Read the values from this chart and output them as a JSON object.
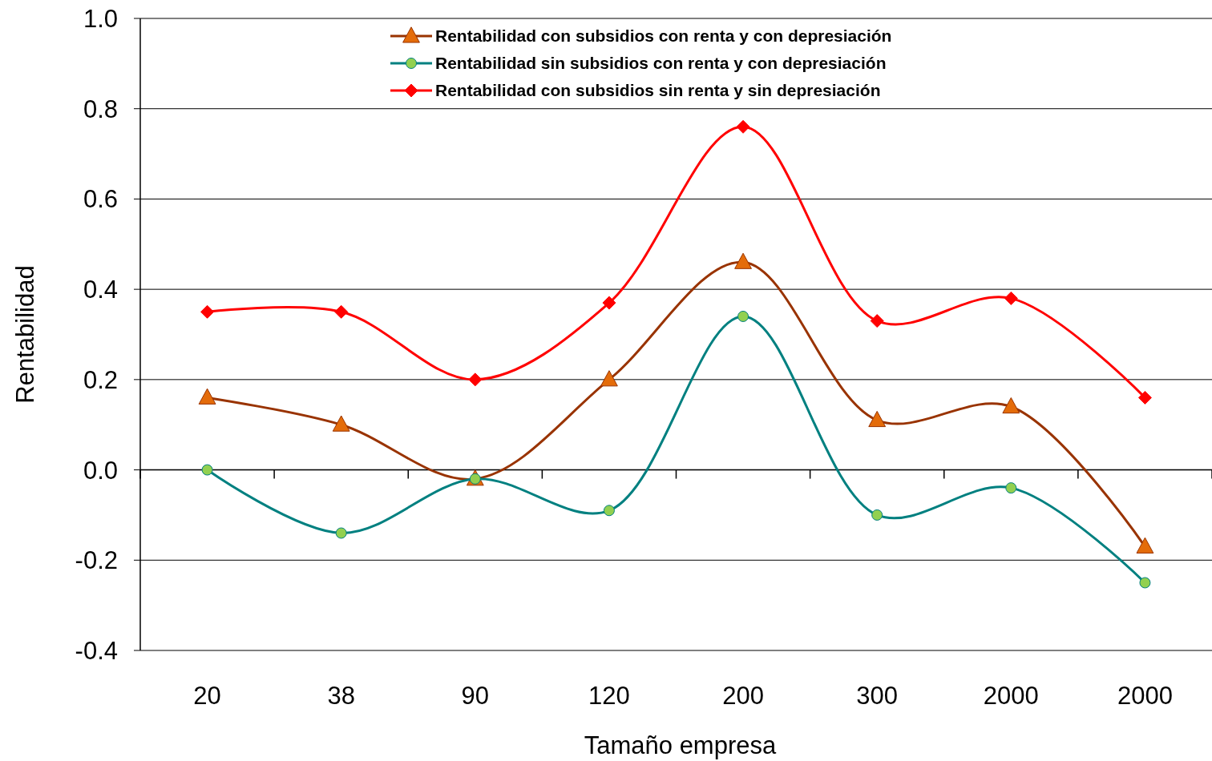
{
  "chart_data": {
    "type": "line",
    "xlabel": "Tamaño empresa",
    "ylabel": "Rentabilidad",
    "categories": [
      "20",
      "38",
      "90",
      "120",
      "200",
      "300",
      "2000",
      "2000"
    ],
    "series": [
      {
        "name": "Rentabilidad  con subsidios con renta y con depresiación",
        "color": "#993300",
        "marker": "triangle",
        "values": [
          0.16,
          0.1,
          -0.02,
          0.2,
          0.46,
          0.11,
          0.14,
          -0.17
        ]
      },
      {
        "name": "Rentabilidad sin subsidios con renta y con depresiación",
        "color": "#008080",
        "marker": "circle",
        "values": [
          0.0,
          -0.14,
          -0.02,
          -0.09,
          0.34,
          -0.1,
          -0.04,
          -0.25
        ]
      },
      {
        "name": "Rentabilidad con subsidios sin renta y sin depresiación",
        "color": "#ff0000",
        "marker": "diamond",
        "values": [
          0.35,
          0.35,
          0.2,
          0.37,
          0.76,
          0.33,
          0.38,
          0.16
        ]
      }
    ],
    "ylim": [
      -0.4,
      1.0
    ],
    "yticks": [
      {
        "value": -0.4,
        "label": "-0.4"
      },
      {
        "value": -0.2,
        "label": "-0.2"
      },
      {
        "value": 0,
        "label": "0.0"
      },
      {
        "value": 0.2,
        "label": "0.2"
      },
      {
        "value": 0.4,
        "label": "0.4"
      },
      {
        "value": 0.6,
        "label": "0.6"
      },
      {
        "value": 0.8,
        "label": "0.8"
      },
      {
        "value": 1.0,
        "label": "1.0"
      }
    ],
    "grid": "y",
    "legend": "top",
    "line_style": "solid"
  }
}
